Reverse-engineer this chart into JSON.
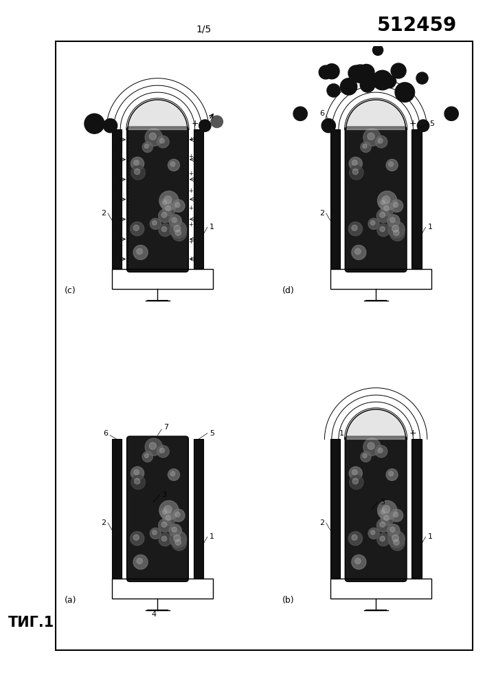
{
  "title_number": "512459",
  "page_label": "1/5",
  "fig_label": "ΤИГ.1",
  "background": "#ffffff",
  "panels": {
    "a": {
      "label": "(a)",
      "row": 1,
      "col": 0,
      "dome": false,
      "arcs": false,
      "arrows": false,
      "droplets": false,
      "many_drops": false,
      "plus_col": false
    },
    "b": {
      "label": "(b)",
      "row": 1,
      "col": 1,
      "dome": true,
      "arcs": true,
      "arrows": false,
      "droplets": false,
      "many_drops": false,
      "plus_col": false
    },
    "c": {
      "label": "(c)",
      "row": 0,
      "col": 0,
      "dome": true,
      "arcs": true,
      "arrows": true,
      "droplets": true,
      "many_drops": false,
      "plus_col": true
    },
    "d": {
      "label": "(d)",
      "row": 0,
      "col": 1,
      "dome": true,
      "arcs": true,
      "arrows": false,
      "droplets": true,
      "many_drops": true,
      "plus_col": false
    }
  }
}
